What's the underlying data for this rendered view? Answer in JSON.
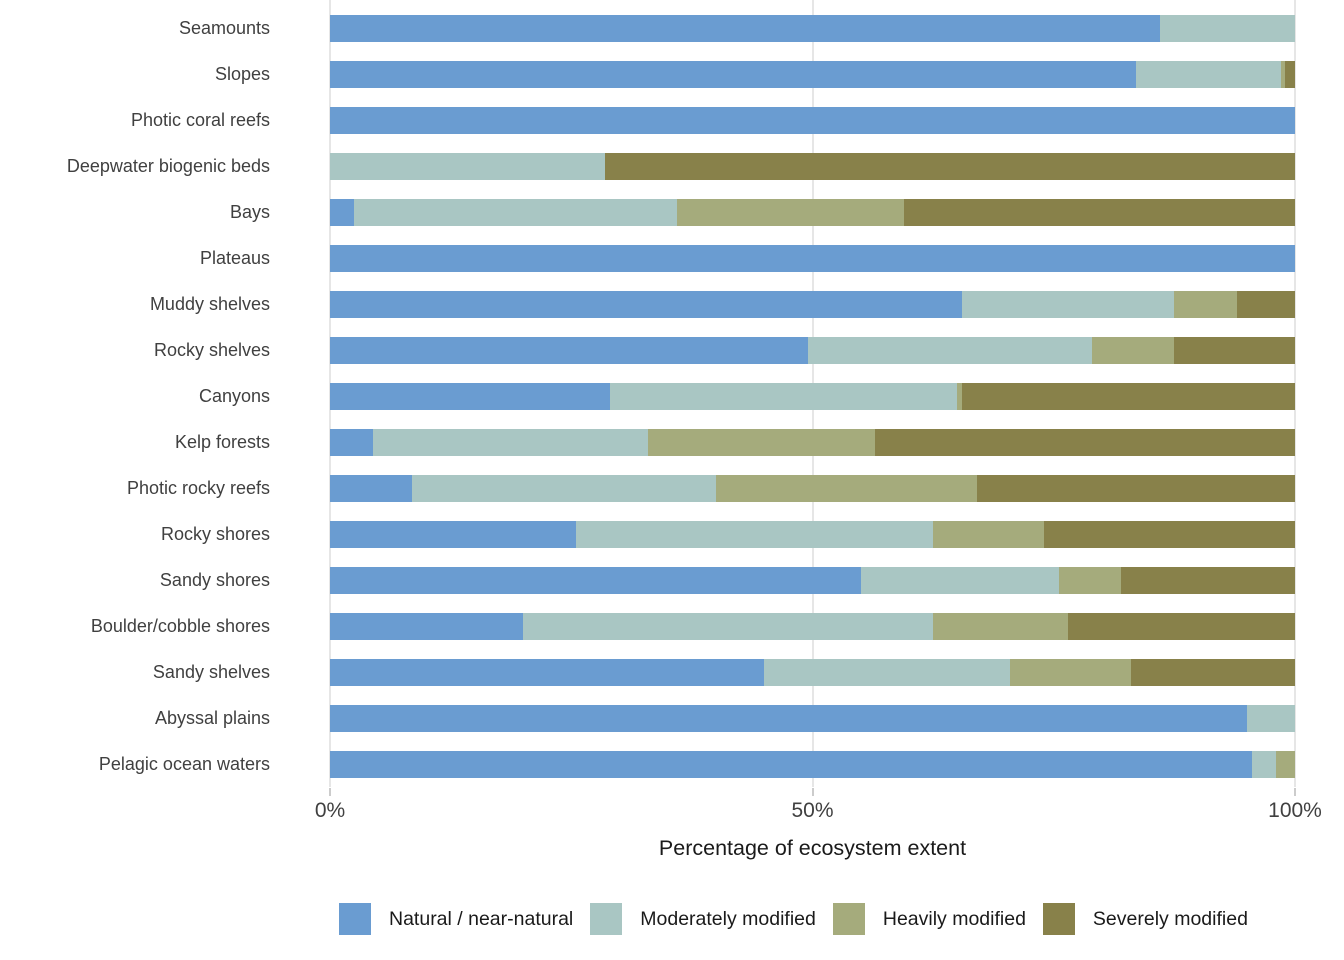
{
  "chart_data": {
    "type": "bar",
    "orientation": "horizontal",
    "stacked": true,
    "title": "",
    "xlabel": "Percentage of ecosystem extent",
    "ylabel": "",
    "xlim": [
      0,
      100
    ],
    "grid": "vertical gridlines at ticks",
    "legend_position": "bottom",
    "x_ticks": [
      {
        "label": "0%",
        "value": 0
      },
      {
        "label": "50%",
        "value": 50
      },
      {
        "label": "100%",
        "value": 100
      }
    ],
    "categories": [
      "Seamounts",
      "Slopes",
      "Photic coral reefs",
      "Deepwater biogenic beds",
      "Bays",
      "Plateaus",
      "Muddy shelves",
      "Rocky shelves",
      "Canyons",
      "Kelp forests",
      "Photic rocky reefs",
      "Rocky shores",
      "Sandy shores",
      "Boulder/cobble shores",
      "Sandy shelves",
      "Abyssal plains",
      "Pelagic ocean waters"
    ],
    "series": [
      {
        "name": "Natural / near-natural",
        "color": "#6A9CD1",
        "values": [
          86,
          83.5,
          100,
          0,
          2.5,
          100,
          65.5,
          49.5,
          29,
          4.5,
          8.5,
          25.5,
          55,
          20,
          45,
          95,
          95.5
        ]
      },
      {
        "name": "Moderately modified",
        "color": "#A9C6C3",
        "values": [
          14,
          15,
          0,
          28.5,
          33.5,
          0,
          22,
          29.5,
          36,
          28.5,
          31.5,
          37,
          20.5,
          42.5,
          25.5,
          5,
          2.5
        ]
      },
      {
        "name": "Heavily modified",
        "color": "#A5AB7C",
        "values": [
          0,
          0.5,
          0,
          0,
          23.5,
          0,
          6.5,
          8.5,
          0.5,
          23.5,
          27,
          11.5,
          6.5,
          14,
          12.5,
          0,
          2
        ]
      },
      {
        "name": "Severely modified",
        "color": "#88814A",
        "values": [
          0,
          1,
          0,
          71.5,
          40.5,
          0,
          6,
          12.5,
          34.5,
          43.5,
          33,
          26,
          18,
          23.5,
          17,
          0,
          0
        ]
      }
    ]
  },
  "colors": {
    "background": "#FFFFFF",
    "gridline": "#E6E6E6",
    "tick_mark": "#CCCCCC",
    "axis_text": "#404040",
    "title_text": "#1A1A1A"
  }
}
